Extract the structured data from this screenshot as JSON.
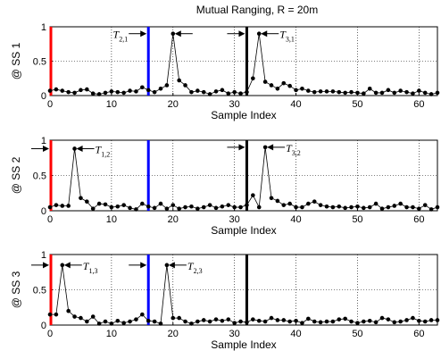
{
  "chart_data": {
    "title": "Mutual Ranging, R = 20m",
    "type": "line",
    "colors": {
      "marker_0": "#ff0000",
      "marker_16": "#0000ff",
      "marker_32": "#000000",
      "series": "#000000"
    },
    "panels": [
      {
        "ylabel": "@ SS 1",
        "xlabel": "Sample Index",
        "xlim": [
          0,
          63
        ],
        "ylim": [
          0,
          1
        ],
        "xticks": [
          "0",
          "10",
          "20",
          "30",
          "40",
          "50",
          "60"
        ],
        "yticks": [
          "0",
          "0.5",
          "1"
        ],
        "grid": true,
        "vlines": [
          0,
          16,
          32
        ],
        "values": [
          0.07,
          0.09,
          0.07,
          0.05,
          0.04,
          0.08,
          0.09,
          0.03,
          0.02,
          0.04,
          0.06,
          0.05,
          0.04,
          0.07,
          0.06,
          0.12,
          0.08,
          0.05,
          0.1,
          0.15,
          0.9,
          0.22,
          0.15,
          0.05,
          0.07,
          0.05,
          0.02,
          0.06,
          0.08,
          0.03,
          0.05,
          0.03,
          0.05,
          0.25,
          0.9,
          0.2,
          0.15,
          0.1,
          0.18,
          0.14,
          0.08,
          0.1,
          0.07,
          0.05,
          0.06,
          0.06,
          0.06,
          0.05,
          0.04,
          0.05,
          0.04,
          0.03,
          0.1,
          0.04,
          0.04,
          0.08,
          0.04,
          0.07,
          0.05,
          0.03,
          0.07,
          0.04,
          0.02,
          0.04
        ],
        "annotations": [
          {
            "main": "T",
            "sub": "2,1",
            "arrow_x": 16
          },
          {
            "main": "T",
            "sub": "3,1",
            "arrow_x": 32
          }
        ]
      },
      {
        "ylabel": "@ SS 2",
        "xlabel": "Sample Index",
        "xlim": [
          0,
          63
        ],
        "ylim": [
          0,
          1
        ],
        "xticks": [
          "0",
          "10",
          "20",
          "30",
          "40",
          "50",
          "60"
        ],
        "yticks": [
          "0",
          "0.5",
          "1"
        ],
        "grid": true,
        "vlines": [
          0,
          16,
          32
        ],
        "values": [
          0.05,
          0.08,
          0.07,
          0.07,
          0.88,
          0.18,
          0.13,
          0.03,
          0.1,
          0.09,
          0.05,
          0.06,
          0.08,
          0.04,
          0.02,
          0.1,
          0.06,
          0.04,
          0.1,
          0.03,
          0.08,
          0.03,
          0.05,
          0.06,
          0.03,
          0.05,
          0.08,
          0.04,
          0.06,
          0.08,
          0.05,
          0.05,
          0.08,
          0.22,
          0.05,
          0.9,
          0.18,
          0.14,
          0.08,
          0.1,
          0.05,
          0.05,
          0.1,
          0.13,
          0.08,
          0.06,
          0.05,
          0.06,
          0.04,
          0.05,
          0.06,
          0.04,
          0.05,
          0.1,
          0.03,
          0.05,
          0.07,
          0.1,
          0.05,
          0.05,
          0.03,
          0.08,
          0.02,
          0.05
        ],
        "annotations": [
          {
            "main": "T",
            "sub": "1,2",
            "arrow_x": 0
          },
          {
            "main": "T",
            "sub": "3,2",
            "arrow_x": 32
          }
        ]
      },
      {
        "ylabel": "@ SS 3",
        "xlabel": "Sample Index",
        "xlim": [
          0,
          63
        ],
        "ylim": [
          0,
          1
        ],
        "xticks": [
          "0",
          "10",
          "20",
          "30",
          "40",
          "50",
          "60"
        ],
        "yticks": [
          "0",
          "0.5",
          "1"
        ],
        "grid": true,
        "vlines": [
          0,
          16,
          32
        ],
        "values": [
          0.15,
          0.15,
          0.85,
          0.2,
          0.12,
          0.1,
          0.05,
          0.12,
          0.02,
          0.05,
          0.02,
          0.06,
          0.03,
          0.05,
          0.08,
          0.15,
          0.06,
          0.05,
          0.02,
          0.85,
          0.1,
          0.1,
          0.05,
          0.02,
          0.05,
          0.07,
          0.05,
          0.08,
          0.06,
          0.08,
          0.03,
          0.05,
          0.04,
          0.08,
          0.06,
          0.05,
          0.1,
          0.07,
          0.07,
          0.05,
          0.06,
          0.03,
          0.09,
          0.05,
          0.04,
          0.05,
          0.05,
          0.08,
          0.09,
          0.05,
          0.03,
          0.05,
          0.06,
          0.04,
          0.1,
          0.08,
          0.04,
          0.05,
          0.07,
          0.1,
          0.06,
          0.05,
          0.07,
          0.07
        ],
        "annotations": [
          {
            "main": "T",
            "sub": "1,3",
            "arrow_x": 0
          },
          {
            "main": "T",
            "sub": "2,3",
            "arrow_x": 16
          }
        ]
      }
    ]
  }
}
